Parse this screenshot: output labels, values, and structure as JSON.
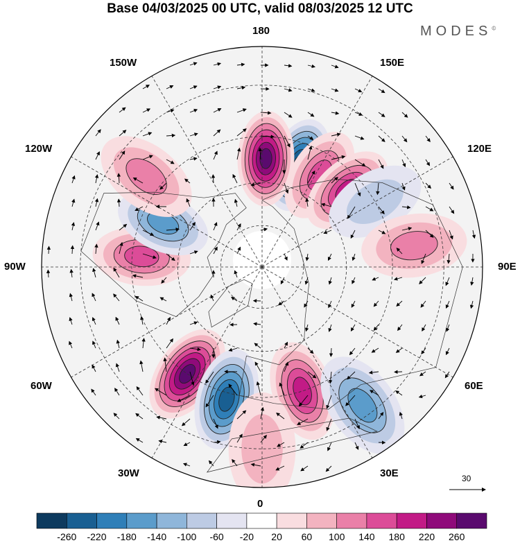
{
  "title": "Base 04/03/2025 00 UTC, valid 08/03/2025 12 UTC",
  "brand": "MODES",
  "brand_mark": "©",
  "longitude_labels": {
    "top": "180",
    "bottom": "0",
    "left": "90W",
    "right": "90E",
    "upper_left_1": "150W",
    "upper_left_2": "120W",
    "lower_left_1": "60W",
    "lower_left_2": "30W",
    "upper_right_1": "150E",
    "upper_right_2": "120E",
    "lower_right_1": "60E",
    "lower_right_2": "30E"
  },
  "vector_key": {
    "value": "30"
  },
  "colorbar": {
    "colors": [
      "#0d3a5e",
      "#195f92",
      "#2f7fb8",
      "#5b9ccb",
      "#8fb6da",
      "#bdcbe4",
      "#e4e4f1",
      "#ffffff",
      "#f9dde0",
      "#f3b3c0",
      "#ea80a8",
      "#dc4c98",
      "#c21b86",
      "#8f0a7a",
      "#5a0a6e"
    ],
    "ticks": [
      "-260",
      "-220",
      "-180",
      "-140",
      "-100",
      "-60",
      "-20",
      "20",
      "60",
      "100",
      "140",
      "180",
      "220",
      "260"
    ]
  },
  "anomaly_centers": [
    {
      "lon": 160,
      "lat": 52,
      "value": -270
    },
    {
      "lon": 178,
      "lat": 52,
      "value": 265
    },
    {
      "lon": 148,
      "lat": 52,
      "value": 175
    },
    {
      "lon": 132,
      "lat": 50,
      "value": 180
    },
    {
      "lon": 120,
      "lat": 45,
      "value": -90
    },
    {
      "lon": 98,
      "lat": 38,
      "value": 110
    },
    {
      "lon": 265,
      "lat": 48,
      "value": 175
    },
    {
      "lon": 246,
      "lat": 52,
      "value": -140
    },
    {
      "lon": 232,
      "lat": 40,
      "value": 125
    },
    {
      "lon": 325,
      "lat": 45,
      "value": 265
    },
    {
      "lon": 345,
      "lat": 43,
      "value": -235
    },
    {
      "lon": 18,
      "lat": 45,
      "value": 185
    },
    {
      "lon": 36,
      "lat": 33,
      "value": -140
    },
    {
      "lon": 0,
      "lat": 30,
      "value": 80
    }
  ]
}
